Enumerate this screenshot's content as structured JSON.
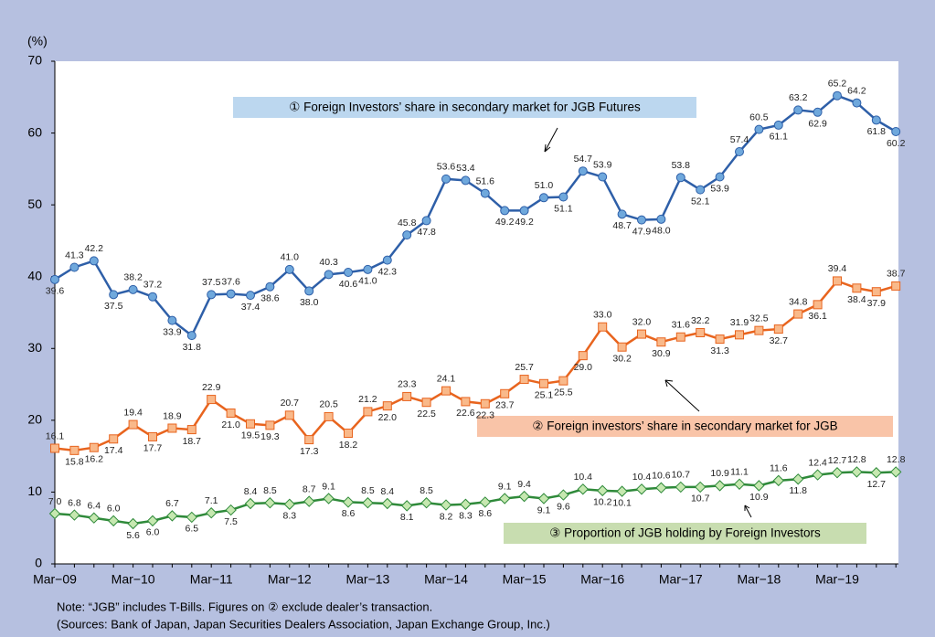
{
  "chart_data": {
    "type": "line",
    "y_unit_label": "(%)",
    "categories": [
      "Mar−09",
      null,
      null,
      null,
      "Mar−10",
      null,
      null,
      null,
      "Mar−11",
      null,
      null,
      null,
      "Mar−12",
      null,
      null,
      null,
      "Mar−13",
      null,
      null,
      null,
      "Mar−14",
      null,
      null,
      null,
      "Mar−15",
      null,
      null,
      null,
      "Mar−16",
      null,
      null,
      null,
      "Mar−17",
      null,
      null,
      null,
      "Mar−18",
      null,
      null,
      null,
      "Mar−19",
      null,
      null,
      null
    ],
    "series": [
      {
        "name": "① Foreign Investors’ share in secondary market for JGB Futures",
        "color": "#2e5fa8",
        "marker_color": "#6fa8dc",
        "marker": "circle",
        "values": [
          39.6,
          41.3,
          42.2,
          37.5,
          38.2,
          37.2,
          33.9,
          31.8,
          37.5,
          37.6,
          37.4,
          38.6,
          41.0,
          38.0,
          40.3,
          40.6,
          41.0,
          42.3,
          45.8,
          47.8,
          53.6,
          53.4,
          51.6,
          49.2,
          49.2,
          51.0,
          51.1,
          54.7,
          53.9,
          48.7,
          47.9,
          48.0,
          53.8,
          52.1,
          53.9,
          57.4,
          60.5,
          61.1,
          63.2,
          62.9,
          65.2,
          64.2,
          61.8,
          60.2
        ],
        "value_labels": [
          "39.6",
          "41.3",
          "42.2",
          "37.5",
          "38.2",
          "37.2",
          "33.9",
          "31.8",
          "37.5",
          "37.6",
          "37.4",
          "38.6",
          "41.0",
          "38.0",
          "40.3",
          "40.6",
          "41.0",
          "42.3",
          "45.8",
          "47.8",
          "53.6",
          "53.4",
          "51.6",
          "49.2",
          "49.2",
          "51.0",
          "51.1",
          "54.7",
          "53.9",
          "48.7",
          "47.9",
          "48.0",
          "53.8",
          "52.1",
          "53.9",
          "57.4",
          "60.5",
          "61.1",
          "63.2",
          "62.9",
          "65.2",
          "64.2",
          "61.8",
          "60.2"
        ],
        "annotation_color": "#bcd7ef"
      },
      {
        "name": "② Foreign investors’ share in secondary market for JGB",
        "color": "#e8641e",
        "marker_color": "#f9b98a",
        "marker": "square",
        "values": [
          16.1,
          15.8,
          16.2,
          17.4,
          19.4,
          17.7,
          18.9,
          18.7,
          22.9,
          21.0,
          19.5,
          19.3,
          20.7,
          17.3,
          20.5,
          18.2,
          21.2,
          22.0,
          23.3,
          22.5,
          24.1,
          22.6,
          22.3,
          23.7,
          25.7,
          25.1,
          25.5,
          29.0,
          33.0,
          30.2,
          32.0,
          30.9,
          31.6,
          32.2,
          31.3,
          31.9,
          32.5,
          32.7,
          34.8,
          36.1,
          39.4,
          38.4,
          37.9,
          38.7
        ],
        "value_labels": [
          "16.1",
          "15.8",
          "16.2",
          "17.4",
          "19.4",
          "17.7",
          "18.9",
          "18.7",
          "22.9",
          "21.0",
          "19.5",
          "19.3",
          "20.7",
          "17.3",
          "20.5",
          "18.2",
          "21.2",
          "22.0",
          "23.3",
          "22.5",
          "24.1",
          "22.6",
          "22.3",
          "23.7",
          "25.7",
          "25.1",
          "25.5",
          "29.0",
          "33.0",
          "30.2",
          "32.0",
          "30.9",
          "31.6",
          "32.2",
          "31.3",
          "31.9",
          "32.5",
          "32.7",
          "34.8",
          "36.1",
          "39.4",
          "38.4",
          "37.9",
          "38.7"
        ],
        "annotation_color": "#f9c4a8"
      },
      {
        "name": "③ Proportion of JGB holding by Foreign Investors",
        "color": "#2f8a3a",
        "marker_color": "#c6e8b0",
        "marker": "diamond",
        "values": [
          7.0,
          6.8,
          6.4,
          6.0,
          5.6,
          6.0,
          6.7,
          6.5,
          7.1,
          7.5,
          8.4,
          8.5,
          8.3,
          8.7,
          9.1,
          8.6,
          8.5,
          8.4,
          8.1,
          8.5,
          8.2,
          8.3,
          8.6,
          9.1,
          9.4,
          9.1,
          9.6,
          10.4,
          10.2,
          10.1,
          10.4,
          10.6,
          10.7,
          10.7,
          10.9,
          11.1,
          10.9,
          11.6,
          11.8,
          12.4,
          12.7,
          12.8,
          12.7,
          12.8
        ],
        "value_labels": [
          "7.0",
          "6.8",
          "6.4",
          "6.0",
          "5.6",
          "6.0",
          "6.7",
          "6.5",
          "7.1",
          "7.5",
          "8.4",
          "8.5",
          "8.3",
          "8.7",
          "9.1",
          "8.6",
          "8.5",
          "8.4",
          "8.1",
          "8.5",
          "8.2",
          "8.3",
          "8.6",
          "9.1",
          "9.4",
          "9.1",
          "9.6",
          "10.4",
          "10.2",
          "10.1",
          "10.4",
          "10.6",
          "10.7",
          "10.7",
          "10.9",
          "11.1",
          "10.9",
          "11.6",
          "11.8",
          "12.4",
          "12.7",
          "12.8",
          "12.7",
          "12.8"
        ],
        "annotation_color": "#c8ddb0"
      }
    ],
    "ylim": [
      0,
      70
    ],
    "yticks": [
      0,
      10,
      20,
      30,
      40,
      50,
      60,
      70
    ],
    "notes": [
      "Note: “JGB” includes T-Bills. Figures on ② exclude dealer’s transaction.",
      "(Sources: Bank of Japan, Japan Securities Dealers Association, Japan Exchange Group, Inc.)"
    ]
  }
}
